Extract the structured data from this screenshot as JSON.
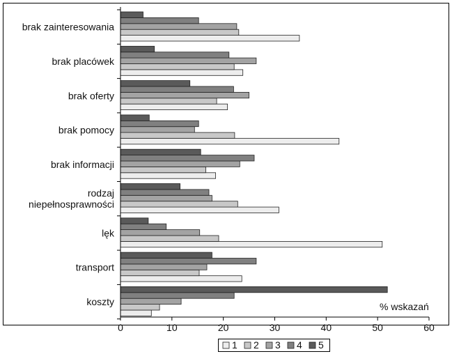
{
  "chart_data": {
    "type": "bar",
    "orientation": "horizontal",
    "categories": [
      [
        "brak zainteresowania"
      ],
      [
        "brak placówek"
      ],
      [
        "brak oferty"
      ],
      [
        "brak pomocy"
      ],
      [
        "brak informacji"
      ],
      [
        "rodzaj",
        "niepełnosprawności"
      ],
      [
        "lęk"
      ],
      [
        "transport"
      ],
      [
        "koszty"
      ]
    ],
    "series": [
      {
        "name": "1",
        "color": "#ededed",
        "values": [
          34.8,
          23.8,
          20.8,
          42.5,
          18.5,
          30.8,
          50.9,
          23.6,
          6.0
        ]
      },
      {
        "name": "2",
        "color": "#c8c8c8",
        "values": [
          23.0,
          22.1,
          18.7,
          22.2,
          16.6,
          22.8,
          19.1,
          15.3,
          7.6
        ]
      },
      {
        "name": "3",
        "color": "#a3a3a3",
        "values": [
          22.6,
          26.4,
          25.0,
          14.4,
          23.2,
          17.8,
          15.4,
          16.8,
          11.8
        ]
      },
      {
        "name": "4",
        "color": "#808080",
        "values": [
          15.2,
          21.1,
          22.0,
          15.2,
          26.0,
          17.2,
          8.9,
          26.4,
          22.1
        ]
      },
      {
        "name": "5",
        "color": "#5a5a5a",
        "values": [
          4.4,
          6.6,
          13.5,
          5.6,
          15.6,
          11.6,
          5.4,
          17.8,
          51.9
        ]
      }
    ],
    "x_ticks": [
      "0",
      "10",
      "20",
      "30",
      "40",
      "50",
      "60"
    ],
    "xlim": [
      0,
      60
    ],
    "unit_label": "% wskazań",
    "legend_position": "bottom",
    "grid": false
  }
}
